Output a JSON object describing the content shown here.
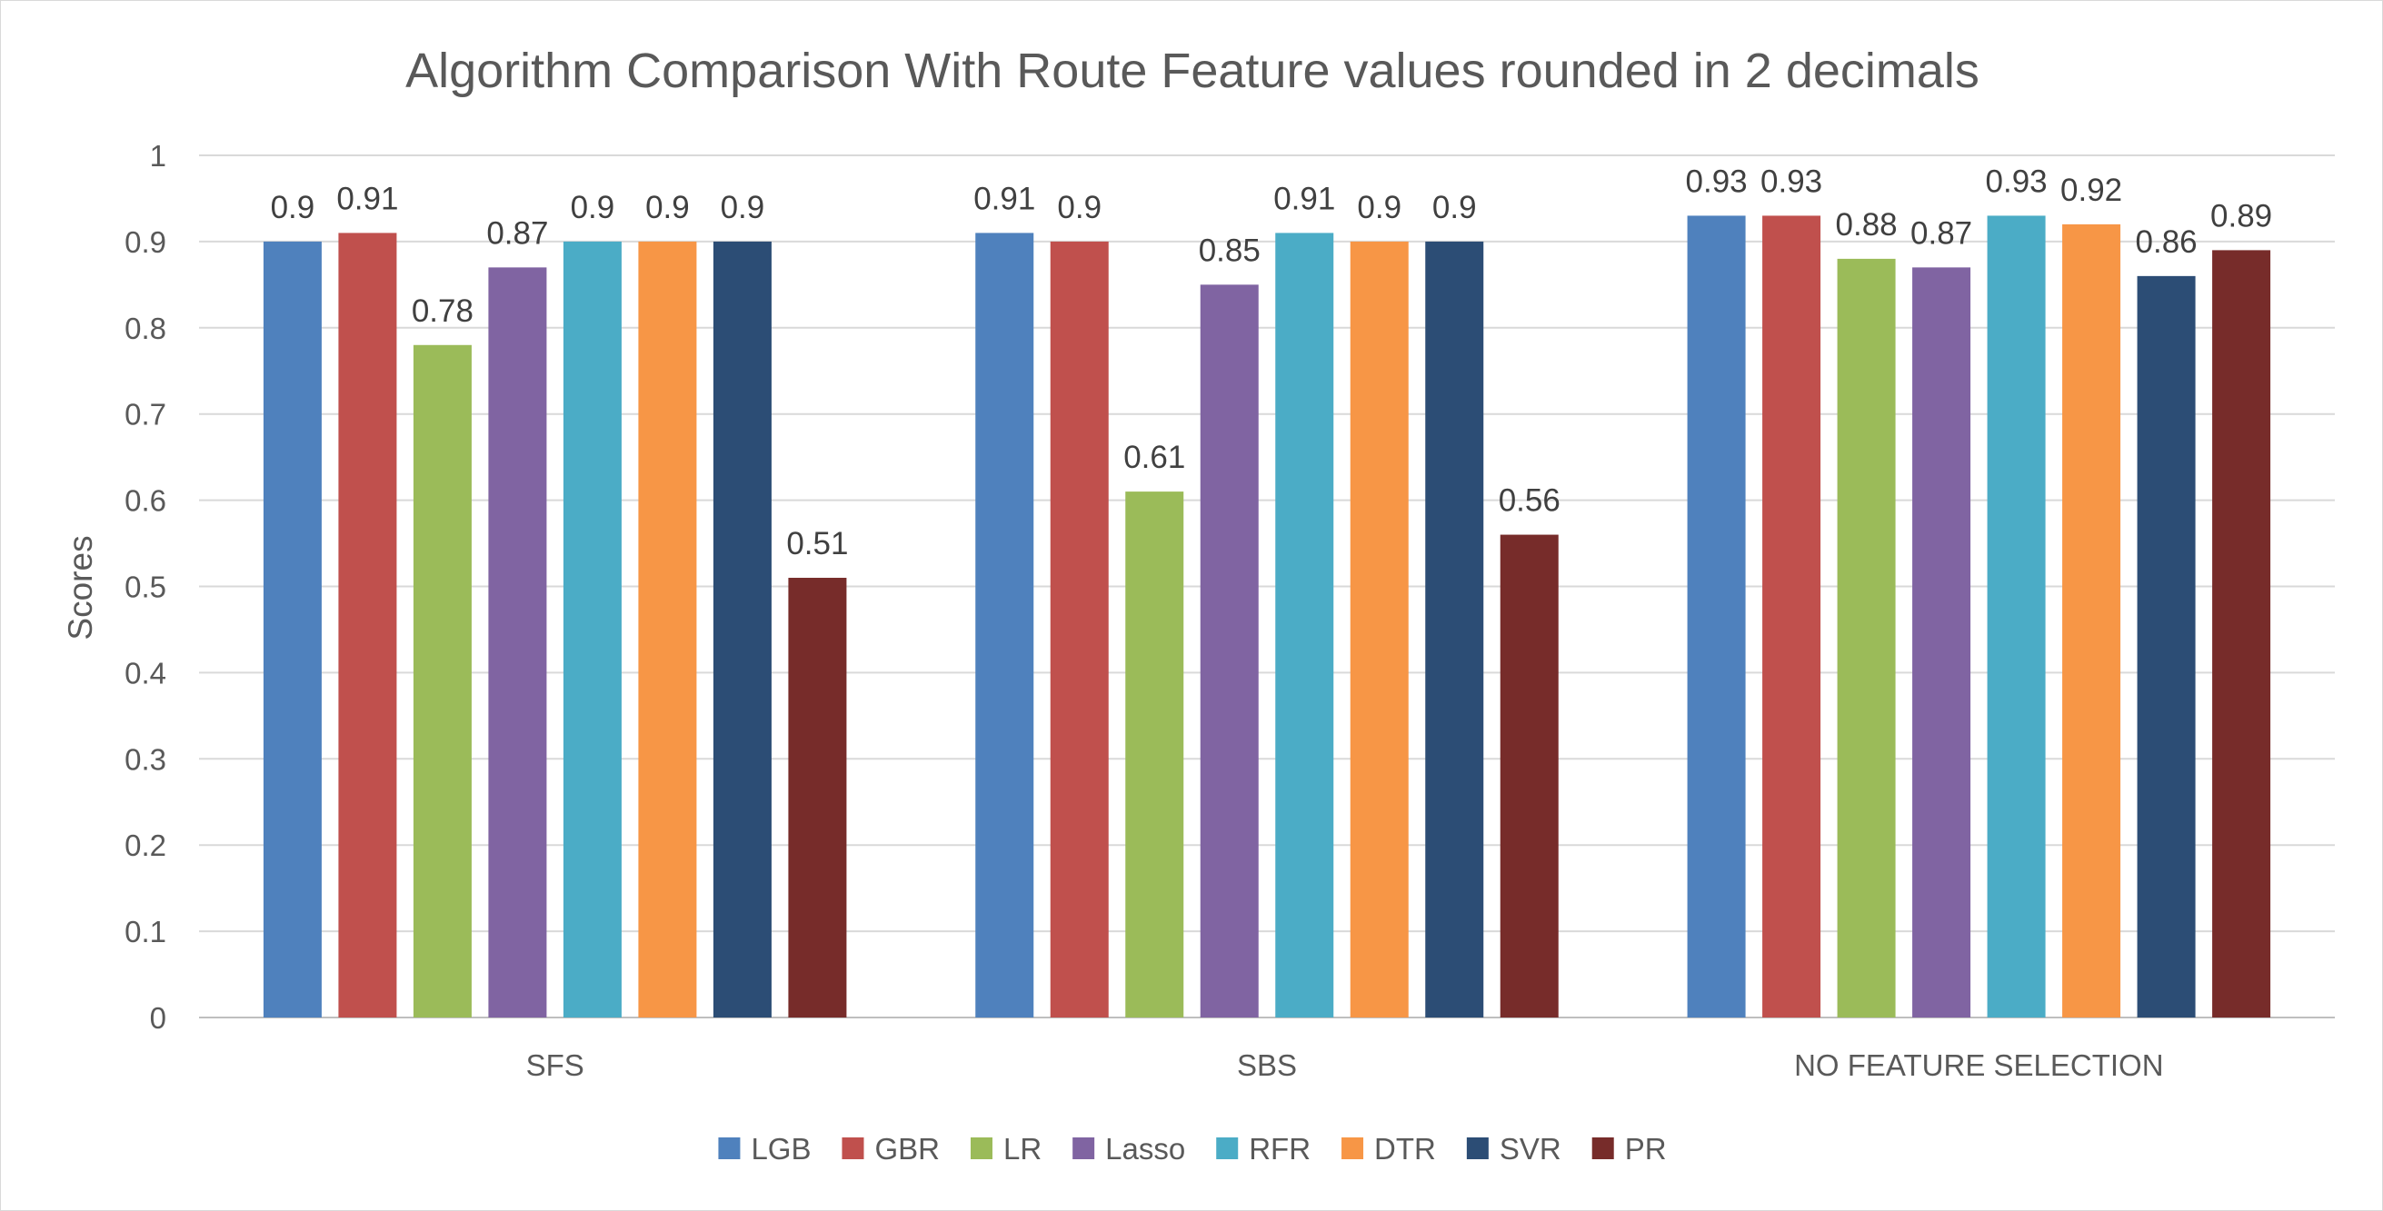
{
  "chart_data": {
    "type": "bar",
    "title": "Algorithm Comparison With Route Feature values rounded in 2 decimals",
    "xlabel": "",
    "ylabel": "Scores",
    "ylim": [
      0,
      1
    ],
    "yticks": [
      "0",
      "0.1",
      "0.2",
      "0.3",
      "0.4",
      "0.5",
      "0.6",
      "0.7",
      "0.8",
      "0.9",
      "1"
    ],
    "grid": true,
    "legend_position": "bottom",
    "categories": [
      "SFS",
      "SBS",
      "NO FEATURE SELECTION"
    ],
    "series": [
      {
        "name": "LGB",
        "color": "#4f81bd",
        "values": [
          0.9,
          0.91,
          0.93
        ],
        "labels": [
          "0.9",
          "0.91",
          "0.93"
        ]
      },
      {
        "name": "GBR",
        "color": "#c0504d",
        "values": [
          0.91,
          0.9,
          0.93
        ],
        "labels": [
          "0.91",
          "0.9",
          "0.93"
        ]
      },
      {
        "name": "LR",
        "color": "#9bbb59",
        "values": [
          0.78,
          0.61,
          0.88
        ],
        "labels": [
          "0.78",
          "0.61",
          "0.88"
        ]
      },
      {
        "name": "Lasso",
        "color": "#8064a2",
        "values": [
          0.87,
          0.85,
          0.87
        ],
        "labels": [
          "0.87",
          "0.85",
          "0.87"
        ]
      },
      {
        "name": "RFR",
        "color": "#4bacc6",
        "values": [
          0.9,
          0.91,
          0.93
        ],
        "labels": [
          "0.9",
          "0.91",
          "0.93"
        ]
      },
      {
        "name": "DTR",
        "color": "#f79646",
        "values": [
          0.9,
          0.9,
          0.92
        ],
        "labels": [
          "0.9",
          "0.9",
          "0.92"
        ]
      },
      {
        "name": "SVR",
        "color": "#2c4d75",
        "values": [
          0.9,
          0.9,
          0.86
        ],
        "labels": [
          "0.9",
          "0.9",
          "0.86"
        ]
      },
      {
        "name": "PR",
        "color": "#772c2a",
        "values": [
          0.51,
          0.56,
          0.89
        ],
        "labels": [
          "0.51",
          "0.56",
          "0.89"
        ]
      }
    ]
  }
}
